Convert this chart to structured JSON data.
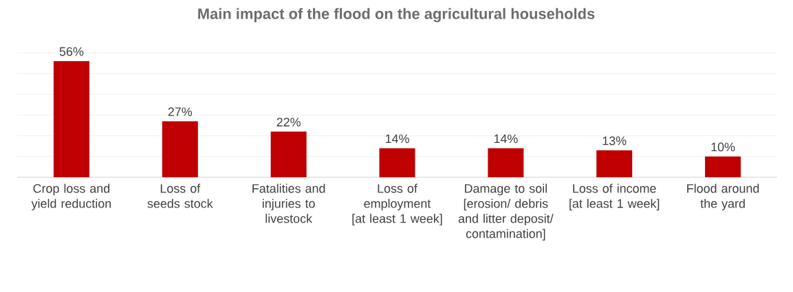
{
  "chart_data": {
    "type": "bar",
    "title": "Main impact of the flood on the agricultural households",
    "categories": [
      "Crop loss and yield reduction",
      "Loss of seeds stock",
      "Fatalities and injuries to livestock",
      "Loss of employment [at least 1 week]",
      "Damage to soil [erosion/ debris and litter deposit/ contamination]",
      "Loss of income [at least 1 week]",
      "Flood around the yard"
    ],
    "values": [
      56,
      27,
      22,
      14,
      14,
      13,
      10
    ],
    "value_labels": [
      "56%",
      "27%",
      "22%",
      "14%",
      "14%",
      "13%",
      "10%"
    ],
    "color": "#c00000",
    "grid": "y",
    "tick_labels": "x"
  }
}
